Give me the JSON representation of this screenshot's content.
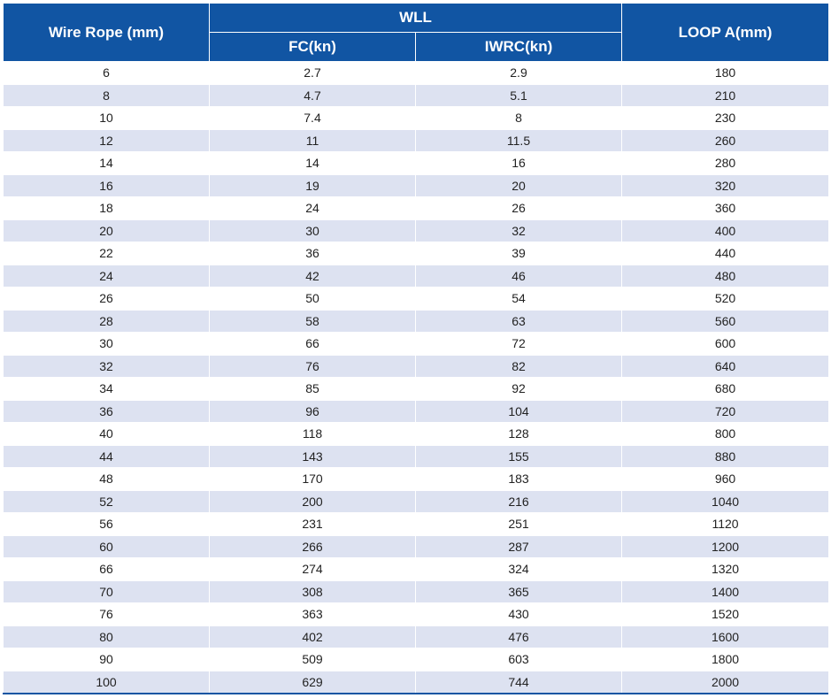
{
  "colors": {
    "header_bg": "#1155a3",
    "stripe": "#dde2f1"
  },
  "headers": {
    "wire_rope": "Wire Rope (mm)",
    "wll": "WLL",
    "fc": "FC(kn)",
    "iwrc": "IWRC(kn)",
    "loop": "LOOP A(mm)"
  },
  "rows": [
    [
      "6",
      "2.7",
      "2.9",
      "180"
    ],
    [
      "8",
      "4.7",
      "5.1",
      "210"
    ],
    [
      "10",
      "7.4",
      "8",
      "230"
    ],
    [
      "12",
      "11",
      "11.5",
      "260"
    ],
    [
      "14",
      "14",
      "16",
      "280"
    ],
    [
      "16",
      "19",
      "20",
      "320"
    ],
    [
      "18",
      "24",
      "26",
      "360"
    ],
    [
      "20",
      "30",
      "32",
      "400"
    ],
    [
      "22",
      "36",
      "39",
      "440"
    ],
    [
      "24",
      "42",
      "46",
      "480"
    ],
    [
      "26",
      "50",
      "54",
      "520"
    ],
    [
      "28",
      "58",
      "63",
      "560"
    ],
    [
      "30",
      "66",
      "72",
      "600"
    ],
    [
      "32",
      "76",
      "82",
      "640"
    ],
    [
      "34",
      "85",
      "92",
      "680"
    ],
    [
      "36",
      "96",
      "104",
      "720"
    ],
    [
      "40",
      "118",
      "128",
      "800"
    ],
    [
      "44",
      "143",
      "155",
      "880"
    ],
    [
      "48",
      "170",
      "183",
      "960"
    ],
    [
      "52",
      "200",
      "216",
      "1040"
    ],
    [
      "56",
      "231",
      "251",
      "1120"
    ],
    [
      "60",
      "266",
      "287",
      "1200"
    ],
    [
      "66",
      "274",
      "324",
      "1320"
    ],
    [
      "70",
      "308",
      "365",
      "1400"
    ],
    [
      "76",
      "363",
      "430",
      "1520"
    ],
    [
      "80",
      "402",
      "476",
      "1600"
    ],
    [
      "90",
      "509",
      "603",
      "1800"
    ],
    [
      "100",
      "629",
      "744",
      "2000"
    ]
  ]
}
